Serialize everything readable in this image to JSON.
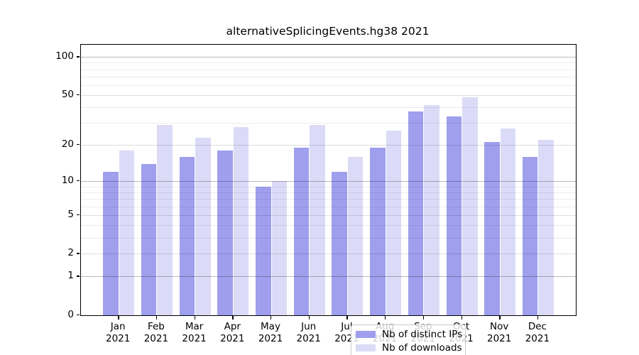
{
  "title": "alternativeSplicingEvents.hg38 2021",
  "chart_data": {
    "type": "bar",
    "title": "alternativeSplicingEvents.hg38 2021",
    "categories": [
      "Jan 2021",
      "Feb 2021",
      "Mar 2021",
      "Apr 2021",
      "May 2021",
      "Jun 2021",
      "Jul 2021",
      "Aug 2021",
      "Sep 2021",
      "Oct 2021",
      "Nov 2021",
      "Dec 2021"
    ],
    "x_tick_month": [
      "Jan",
      "Feb",
      "Mar",
      "Apr",
      "May",
      "Jun",
      "Jul",
      "Aug",
      "Sep",
      "Oct",
      "Nov",
      "Dec"
    ],
    "x_tick_year": "2021",
    "series": [
      {
        "name": "Nb of distinct IPs",
        "color": "#9f9fee",
        "values": [
          12,
          14,
          16,
          18,
          9,
          19,
          12,
          19,
          37,
          34,
          21,
          16
        ]
      },
      {
        "name": "Nb of downloads",
        "color": "#dbdbf8",
        "values": [
          18,
          29,
          23,
          28,
          10,
          29,
          16,
          26,
          42,
          48,
          27,
          22
        ]
      }
    ],
    "xlabel": "",
    "ylabel": "",
    "yscale": "log1p",
    "yticks": [
      0,
      1,
      2,
      5,
      10,
      20,
      50,
      100
    ],
    "ytick_labels": [
      "0",
      "1",
      "2",
      "5",
      "10",
      "20",
      "50",
      "100"
    ],
    "decade_gridlines": [
      1,
      10,
      100
    ],
    "minor_gridlines": [
      3,
      4,
      6,
      7,
      8,
      9,
      30,
      40,
      60,
      70,
      80,
      90
    ],
    "ylim": [
      0,
      125
    ],
    "grid": true,
    "legend": {
      "position": "lower center",
      "entries": [
        "Nb of distinct IPs",
        "Nb of downloads"
      ]
    }
  }
}
